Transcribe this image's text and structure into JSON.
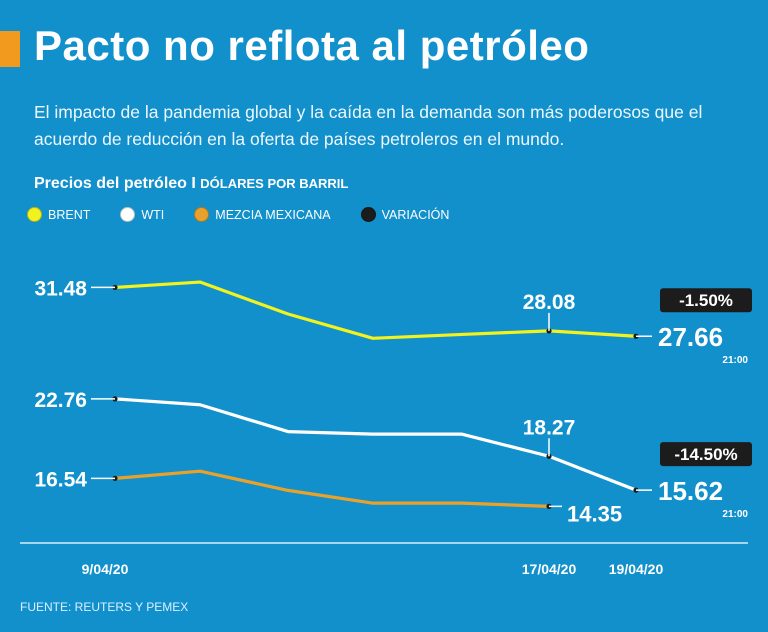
{
  "header": {
    "title": "Pacto no reflota al petróleo",
    "subtitle": "El impacto de la pandemia global y la caída en la demanda son más poderosos que el acuerdo de reducción en la oferta de países petroleros en el mundo."
  },
  "chart_header": {
    "title": "Precios del petróleo",
    "separator": "I",
    "unit": "DÓLARES POR BARRIL"
  },
  "legend": [
    {
      "label": "BRENT",
      "color": "#f2f21e"
    },
    {
      "label": "WTI",
      "color": "#ffffff"
    },
    {
      "label": "MEZCIA MEXICANA",
      "color": "#e8a22c"
    },
    {
      "label": "VARIACIÓN",
      "color": "#1c1c1c"
    }
  ],
  "chart_data": {
    "type": "line",
    "title": "Precios del petróleo | DÓLARES POR BARRIL",
    "xlabel": "",
    "ylabel": "Dólares por barril",
    "x": [
      "9/04/20",
      "",
      "",
      "",
      "",
      "17/04/20",
      "19/04/20"
    ],
    "x_tick_labels": [
      {
        "index": 0,
        "label": "9/04/20"
      },
      {
        "index": 5,
        "label": "17/04/20"
      },
      {
        "index": 6,
        "label": "19/04/20"
      }
    ],
    "series": [
      {
        "name": "BRENT",
        "color": "#f2f21e",
        "values": [
          31.48,
          31.9,
          29.4,
          27.5,
          27.8,
          28.08,
          27.66
        ],
        "labels": [
          {
            "index": 0,
            "text": "31.48",
            "pos": "left"
          },
          {
            "index": 5,
            "text": "28.08",
            "pos": "above"
          },
          {
            "index": 6,
            "text": "27.66",
            "pos": "right",
            "time": "21:00"
          }
        ],
        "variation": "-1.50%"
      },
      {
        "name": "WTI",
        "color": "#ffffff",
        "values": [
          22.76,
          22.3,
          20.2,
          20.0,
          20.0,
          18.27,
          15.62
        ],
        "labels": [
          {
            "index": 0,
            "text": "22.76",
            "pos": "left"
          },
          {
            "index": 5,
            "text": "18.27",
            "pos": "above"
          },
          {
            "index": 6,
            "text": "15.62",
            "pos": "right",
            "time": "21:00"
          }
        ],
        "variation": "-14.50%"
      },
      {
        "name": "MEZCIA MEXICANA",
        "color": "#e8a22c",
        "values": [
          16.54,
          17.1,
          15.6,
          14.6,
          14.6,
          14.35,
          null
        ],
        "labels": [
          {
            "index": 0,
            "text": "16.54",
            "pos": "left"
          },
          {
            "index": 5,
            "text": "14.35",
            "pos": "right"
          }
        ]
      }
    ],
    "ylim": [
      12.5,
      33.0
    ]
  },
  "source": "FUENTE: REUTERS Y PEMEX"
}
